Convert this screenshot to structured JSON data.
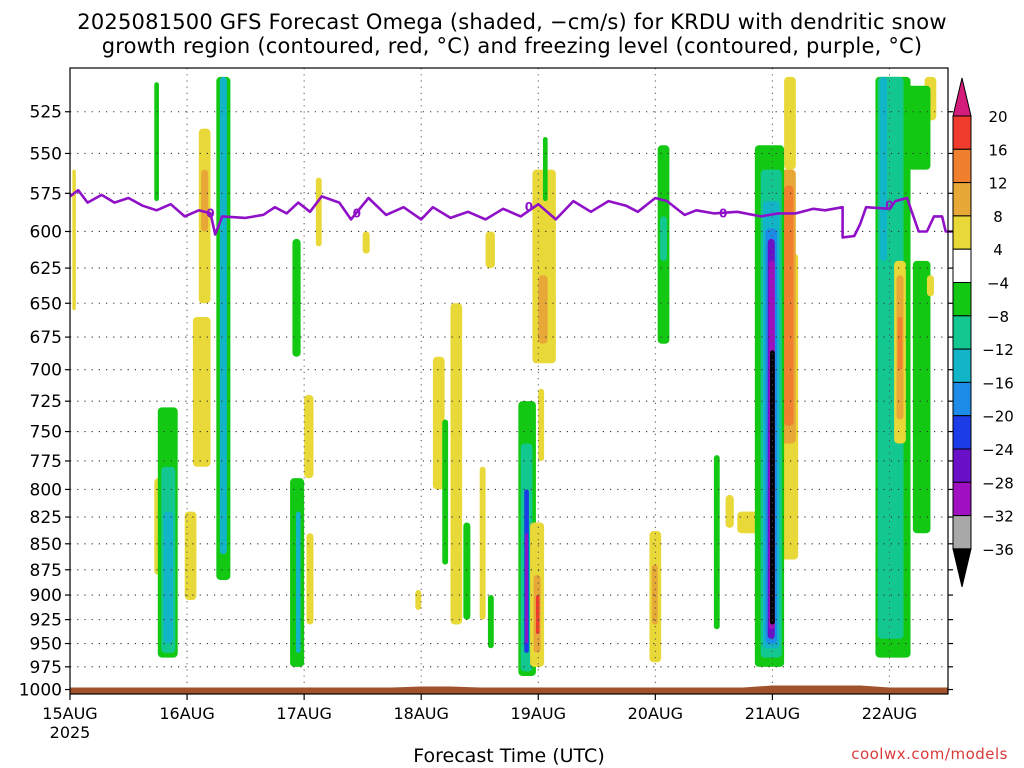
{
  "chart_data": {
    "type": "heatmap",
    "title": "2025081500 GFS Forecast Omega (shaded, −cm/s) for KRDU with dendritic snow",
    "subtitle": "growth region (contoured, red, °C) and freezing level (contoured, purple, °C)",
    "xlabel": "Forecast Time (UTC)",
    "credit": "coolwx.com/models",
    "x_ticks": [
      "15AUG",
      "16AUG",
      "17AUG",
      "18AUG",
      "19AUG",
      "20AUG",
      "21AUG",
      "22AUG"
    ],
    "x_year": "2025",
    "x_range_days": [
      0,
      7.5
    ],
    "y_ticks": [
      525,
      550,
      575,
      600,
      625,
      650,
      675,
      700,
      725,
      750,
      775,
      800,
      825,
      850,
      875,
      900,
      925,
      950,
      975,
      1000
    ],
    "y_range_hpa": [
      500,
      1005
    ],
    "y_scale": "log-pressure",
    "colorbar": {
      "labels": [
        "20",
        "16",
        "12",
        "8",
        "4",
        "−4",
        "−8",
        "−12",
        "−16",
        "−20",
        "−24",
        "−28",
        "−32",
        "−36"
      ],
      "colors": [
        "#d41c7a",
        "#f03c2c",
        "#f08030",
        "#e8a838",
        "#e8d838",
        "#ffffff",
        "#12c812",
        "#12c890",
        "#12b4c8",
        "#1c8ce8",
        "#1c3ce8",
        "#6a10c8",
        "#a010c0",
        "#a8a8a8",
        "#000000"
      ]
    },
    "freezing_level": {
      "label": "0",
      "color": "#9010c8",
      "points": [
        [
          0,
          577
        ],
        [
          0.07,
          573
        ],
        [
          0.15,
          581
        ],
        [
          0.27,
          576
        ],
        [
          0.38,
          581
        ],
        [
          0.5,
          578
        ],
        [
          0.62,
          583
        ],
        [
          0.74,
          586
        ],
        [
          0.86,
          582
        ],
        [
          0.98,
          590
        ],
        [
          1.1,
          586
        ],
        [
          1.2,
          588
        ],
        [
          1.24,
          602
        ],
        [
          1.3,
          590
        ],
        [
          1.5,
          591
        ],
        [
          1.65,
          589
        ],
        [
          1.75,
          584
        ],
        [
          1.85,
          588
        ],
        [
          1.95,
          581
        ],
        [
          2.05,
          587
        ],
        [
          2.15,
          577
        ],
        [
          2.3,
          581
        ],
        [
          2.4,
          592
        ],
        [
          2.55,
          578
        ],
        [
          2.7,
          589
        ],
        [
          2.85,
          584
        ],
        [
          3.0,
          592
        ],
        [
          3.1,
          584
        ],
        [
          3.25,
          591
        ],
        [
          3.4,
          587
        ],
        [
          3.55,
          592
        ],
        [
          3.7,
          585
        ],
        [
          3.85,
          590
        ],
        [
          4.0,
          582
        ],
        [
          4.15,
          592
        ],
        [
          4.3,
          580
        ],
        [
          4.45,
          587
        ],
        [
          4.6,
          580
        ],
        [
          4.75,
          583
        ],
        [
          4.85,
          587
        ],
        [
          5.0,
          578
        ],
        [
          5.1,
          580
        ],
        [
          5.25,
          589
        ],
        [
          5.35,
          586
        ],
        [
          5.5,
          588
        ],
        [
          5.7,
          587
        ],
        [
          5.9,
          590
        ],
        [
          6.05,
          588
        ],
        [
          6.2,
          588
        ],
        [
          6.35,
          585
        ],
        [
          6.45,
          586
        ],
        [
          6.6,
          584
        ],
        [
          6.6,
          604
        ],
        [
          6.7,
          603
        ],
        [
          6.75,
          595
        ],
        [
          6.8,
          584
        ],
        [
          7.0,
          585
        ],
        [
          7.05,
          580
        ],
        [
          7.15,
          578
        ],
        [
          7.25,
          600
        ],
        [
          7.32,
          600
        ],
        [
          7.38,
          590
        ],
        [
          7.45,
          590
        ],
        [
          7.48,
          600
        ],
        [
          7.55,
          600
        ]
      ]
    },
    "snow_growth_label": "0",
    "surface_color": "#a0522d",
    "regions": [
      {
        "v": 4,
        "d0": 0.02,
        "d1": 0.05,
        "p0": 560,
        "p1": 655
      },
      {
        "v": -8,
        "d0": 0.72,
        "d1": 0.76,
        "p0": 508,
        "p1": 580
      },
      {
        "v": 4,
        "d0": 1.1,
        "d1": 1.2,
        "p0": 535,
        "p1": 650
      },
      {
        "v": 8,
        "d0": 1.12,
        "d1": 1.18,
        "p0": 560,
        "p1": 600
      },
      {
        "v": -8,
        "d0": 1.25,
        "d1": 1.37,
        "p0": 505,
        "p1": 885
      },
      {
        "v": -16,
        "d0": 1.28,
        "d1": 1.34,
        "p0": 505,
        "p1": 860
      },
      {
        "v": 4,
        "d0": 1.05,
        "d1": 1.2,
        "p0": 660,
        "p1": 780
      },
      {
        "v": 4,
        "d0": 0.72,
        "d1": 0.82,
        "p0": 790,
        "p1": 880
      },
      {
        "v": -8,
        "d0": 0.75,
        "d1": 0.92,
        "p0": 730,
        "p1": 965
      },
      {
        "v": -12,
        "d0": 0.78,
        "d1": 0.9,
        "p0": 780,
        "p1": 960
      },
      {
        "v": -16,
        "d0": 0.8,
        "d1": 0.88,
        "p0": 820,
        "p1": 950
      },
      {
        "v": 4,
        "d0": 0.98,
        "d1": 1.08,
        "p0": 820,
        "p1": 905
      },
      {
        "v": -8,
        "d0": 1.9,
        "d1": 1.97,
        "p0": 605,
        "p1": 690
      },
      {
        "v": 4,
        "d0": 2.0,
        "d1": 2.08,
        "p0": 720,
        "p1": 790
      },
      {
        "v": -8,
        "d0": 1.88,
        "d1": 2.0,
        "p0": 790,
        "p1": 975
      },
      {
        "v": -16,
        "d0": 1.93,
        "d1": 1.97,
        "p0": 820,
        "p1": 960
      },
      {
        "v": 4,
        "d0": 2.02,
        "d1": 2.08,
        "p0": 840,
        "p1": 930
      },
      {
        "v": 4,
        "d0": 2.1,
        "d1": 2.15,
        "p0": 565,
        "p1": 610
      },
      {
        "v": 4,
        "d0": 2.5,
        "d1": 2.56,
        "p0": 600,
        "p1": 615
      },
      {
        "v": 4,
        "d0": 2.95,
        "d1": 3.0,
        "p0": 895,
        "p1": 915
      },
      {
        "v": 4,
        "d0": 3.1,
        "d1": 3.2,
        "p0": 690,
        "p1": 800
      },
      {
        "v": -8,
        "d0": 3.18,
        "d1": 3.23,
        "p0": 740,
        "p1": 870
      },
      {
        "v": 4,
        "d0": 3.25,
        "d1": 3.35,
        "p0": 650,
        "p1": 930
      },
      {
        "v": -8,
        "d0": 3.36,
        "d1": 3.42,
        "p0": 830,
        "p1": 925
      },
      {
        "v": 4,
        "d0": 3.5,
        "d1": 3.55,
        "p0": 780,
        "p1": 925
      },
      {
        "v": -8,
        "d0": 3.57,
        "d1": 3.62,
        "p0": 900,
        "p1": 955
      },
      {
        "v": 4,
        "d0": 3.55,
        "d1": 3.63,
        "p0": 600,
        "p1": 625
      },
      {
        "v": 4,
        "d0": 3.95,
        "d1": 4.15,
        "p0": 560,
        "p1": 695
      },
      {
        "v": 8,
        "d0": 4.0,
        "d1": 4.08,
        "p0": 630,
        "p1": 680
      },
      {
        "v": 4,
        "d0": 4.0,
        "d1": 4.05,
        "p0": 715,
        "p1": 775
      },
      {
        "v": -8,
        "d0": 3.83,
        "d1": 3.98,
        "p0": 725,
        "p1": 985
      },
      {
        "v": -12,
        "d0": 3.85,
        "d1": 3.95,
        "p0": 760,
        "p1": 980
      },
      {
        "v": -24,
        "d0": 3.88,
        "d1": 3.92,
        "p0": 800,
        "p1": 960
      },
      {
        "v": -32,
        "d0": 3.89,
        "d1": 3.91,
        "p0": 840,
        "p1": 950
      },
      {
        "v": 4,
        "d0": 3.93,
        "d1": 4.05,
        "p0": 830,
        "p1": 975
      },
      {
        "v": 8,
        "d0": 3.96,
        "d1": 4.02,
        "p0": 880,
        "p1": 960
      },
      {
        "v": 16,
        "d0": 3.98,
        "d1": 4.01,
        "p0": 900,
        "p1": 940
      },
      {
        "v": -8,
        "d0": 4.04,
        "d1": 4.08,
        "p0": 540,
        "p1": 580
      },
      {
        "v": 4,
        "d0": 4.95,
        "d1": 5.05,
        "p0": 838,
        "p1": 970
      },
      {
        "v": 8,
        "d0": 4.97,
        "d1": 5.02,
        "p0": 870,
        "p1": 930
      },
      {
        "v": -8,
        "d0": 5.02,
        "d1": 5.12,
        "p0": 545,
        "p1": 680
      },
      {
        "v": -12,
        "d0": 5.04,
        "d1": 5.1,
        "p0": 590,
        "p1": 620
      },
      {
        "v": -8,
        "d0": 5.5,
        "d1": 5.55,
        "p0": 770,
        "p1": 935
      },
      {
        "v": 4,
        "d0": 5.6,
        "d1": 5.67,
        "p0": 805,
        "p1": 835
      },
      {
        "v": 4,
        "d0": 6.1,
        "d1": 6.2,
        "p0": 505,
        "p1": 560
      },
      {
        "v": 4,
        "d0": 6.05,
        "d1": 6.22,
        "p0": 615,
        "p1": 865
      },
      {
        "v": 8,
        "d0": 6.08,
        "d1": 6.2,
        "p0": 560,
        "p1": 760
      },
      {
        "v": 12,
        "d0": 6.1,
        "d1": 6.18,
        "p0": 570,
        "p1": 745
      },
      {
        "v": 4,
        "d0": 5.7,
        "d1": 5.9,
        "p0": 820,
        "p1": 840
      },
      {
        "v": -8,
        "d0": 5.85,
        "d1": 6.1,
        "p0": 545,
        "p1": 975
      },
      {
        "v": -12,
        "d0": 5.9,
        "d1": 6.08,
        "p0": 560,
        "p1": 965
      },
      {
        "v": -16,
        "d0": 5.92,
        "d1": 6.06,
        "p0": 580,
        "p1": 955
      },
      {
        "v": -20,
        "d0": 5.94,
        "d1": 6.04,
        "p0": 598,
        "p1": 950
      },
      {
        "v": -28,
        "d0": 5.96,
        "d1": 6.02,
        "p0": 605,
        "p1": 945
      },
      {
        "v": -32,
        "d0": 5.97,
        "d1": 6.02,
        "p0": 620,
        "p1": 935
      },
      {
        "v": -36,
        "d0": 5.98,
        "d1": 6.02,
        "p0": 685,
        "p1": 930
      },
      {
        "v": 4,
        "d0": 7.3,
        "d1": 7.4,
        "p0": 505,
        "p1": 530
      },
      {
        "v": -8,
        "d0": 7.1,
        "d1": 7.35,
        "p0": 510,
        "p1": 560
      },
      {
        "v": -8,
        "d0": 6.88,
        "d1": 7.18,
        "p0": 505,
        "p1": 965
      },
      {
        "v": -12,
        "d0": 6.9,
        "d1": 7.12,
        "p0": 505,
        "p1": 945
      },
      {
        "v": -16,
        "d0": 6.92,
        "d1": 6.98,
        "p0": 505,
        "p1": 620
      },
      {
        "v": 4,
        "d0": 7.04,
        "d1": 7.14,
        "p0": 620,
        "p1": 760
      },
      {
        "v": 8,
        "d0": 7.06,
        "d1": 7.12,
        "p0": 630,
        "p1": 740
      },
      {
        "v": 12,
        "d0": 7.07,
        "d1": 7.11,
        "p0": 660,
        "p1": 700
      },
      {
        "v": -8,
        "d0": 7.2,
        "d1": 7.35,
        "p0": 620,
        "p1": 840
      },
      {
        "v": 4,
        "d0": 7.32,
        "d1": 7.38,
        "p0": 630,
        "p1": 645
      }
    ]
  }
}
